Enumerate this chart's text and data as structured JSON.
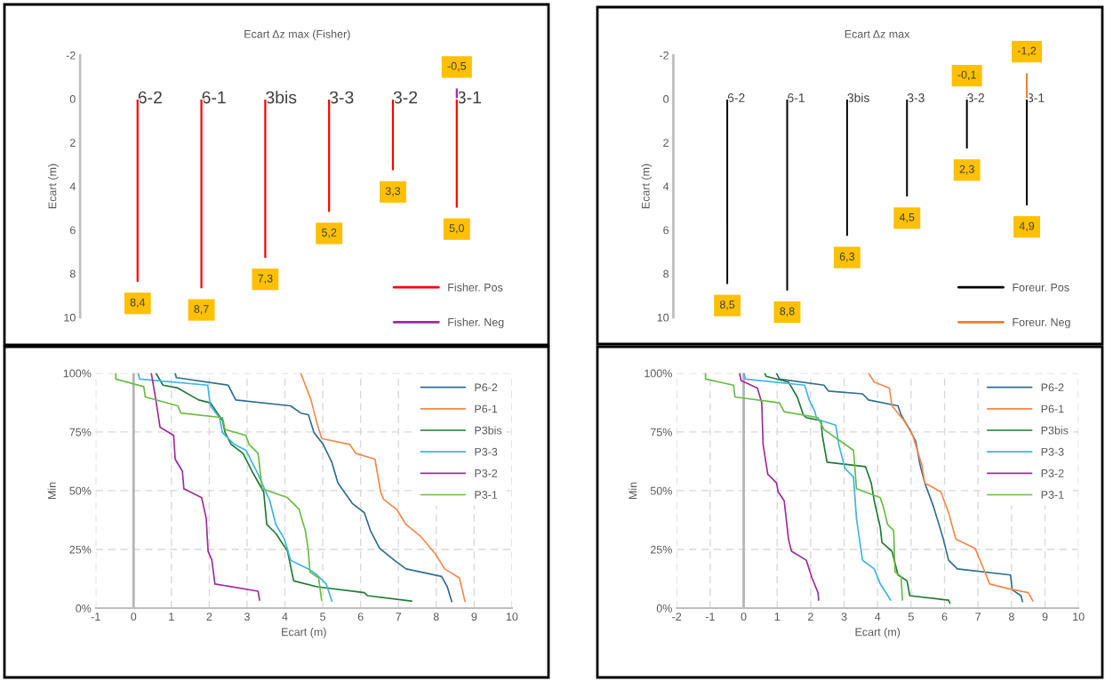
{
  "chart_data": [
    {
      "type": "bar",
      "title": "Ecart Δz max (Fisher)",
      "ylabel": "Ecart (m)",
      "categories": [
        "6-2",
        "6-1",
        "3bis",
        "3-3",
        "3-2",
        "3-1"
      ],
      "series": [
        {
          "name": "Fisher. Pos",
          "color": "#ff0000",
          "values": [
            8.4,
            8.7,
            7.3,
            5.2,
            3.3,
            5.0
          ],
          "value_labels": [
            "8,4",
            "8,7",
            "7,3",
            "5,2",
            "3,3",
            "5,0"
          ]
        },
        {
          "name": "Fisher. Neg",
          "color": "#9e2a9e",
          "values": [
            null,
            null,
            null,
            null,
            null,
            -0.5
          ],
          "value_labels": [
            null,
            null,
            null,
            null,
            null,
            "-0,5"
          ]
        }
      ],
      "ylim": [
        10,
        -2
      ],
      "yticks": [
        -2,
        0,
        2,
        4,
        6,
        8,
        10
      ],
      "grid": false,
      "legend": "bottom right"
    },
    {
      "type": "bar",
      "title": "Ecart Δz max",
      "ylabel": "Ecart (m)",
      "categories": [
        "6-2",
        "6-1",
        "3bis",
        "3-3",
        "3-2",
        "3-1"
      ],
      "series": [
        {
          "name": "Foreur. Pos",
          "color": "#000000",
          "values": [
            8.5,
            8.8,
            6.3,
            4.5,
            2.3,
            4.9
          ],
          "value_labels": [
            "8,5",
            "8,8",
            "6,3",
            "4,5",
            "2,3",
            "4,9"
          ]
        },
        {
          "name": "Foreur. Neg",
          "color": "#ed7d31",
          "values": [
            null,
            null,
            null,
            null,
            -0.1,
            -1.2
          ],
          "value_labels": [
            null,
            null,
            null,
            null,
            "-0,1",
            "-1,2"
          ]
        }
      ],
      "ylim": [
        10,
        -2
      ],
      "yticks": [
        -2,
        0,
        2,
        4,
        6,
        8,
        10
      ],
      "grid": false,
      "legend": "bottom right"
    },
    {
      "type": "line",
      "xlabel": "Ecart (m)",
      "ylabel": "Min",
      "line_style": "solid",
      "grid": true,
      "legend": "top right",
      "xlim": [
        -1,
        10
      ],
      "xticks": [
        -1,
        0,
        1,
        2,
        3,
        4,
        5,
        6,
        7,
        8,
        9,
        10
      ],
      "ylim": [
        0,
        100
      ],
      "yticks": [
        {
          "value": 0,
          "label": "0%"
        },
        {
          "value": 25,
          "label": "25%"
        },
        {
          "value": 50,
          "label": "50%"
        },
        {
          "value": 75,
          "label": "75%"
        },
        {
          "value": 100,
          "label": "100%"
        }
      ],
      "ref_lines": [
        {
          "axis": "x",
          "value": 0,
          "color": "#b4b4b4"
        }
      ],
      "series": [
        {
          "name": "P6-2",
          "color": "#2e6e92",
          "x": [
            1.1,
            1.13,
            2.5,
            2.7,
            4.15,
            4.42,
            4.62,
            4.77,
            5.01,
            5.24,
            5.4,
            5.79,
            6.1,
            6.26,
            6.5,
            6.89,
            7.2,
            8.14,
            8.29,
            8.41
          ],
          "values": [
            100,
            98.1,
            94.9,
            88.6,
            86.1,
            83.0,
            82.3,
            74.7,
            69.7,
            62.1,
            53.3,
            44.4,
            40.6,
            33.0,
            25.5,
            20.4,
            16.7,
            13.5,
            9.1,
            2.8
          ]
        },
        {
          "name": "P6-1",
          "color": "#f4894a",
          "x": [
            4.42,
            4.69,
            4.85,
            4.97,
            5.71,
            5.87,
            6.38,
            6.53,
            6.61,
            6.96,
            7.2,
            7.59,
            7.98,
            8.22,
            8.61,
            8.76
          ],
          "values": [
            100,
            88.6,
            78.5,
            72.2,
            69.7,
            65.9,
            63.4,
            49.4,
            46.3,
            41.9,
            35.6,
            30.5,
            23.0,
            16.7,
            12.9,
            2.8
          ]
        },
        {
          "name": "P3bis",
          "color": "#1e7b32",
          "x": [
            0.59,
            0.78,
            1.17,
            1.72,
            2.03,
            2.35,
            2.42,
            2.58,
            2.89,
            3.13,
            3.44,
            3.52,
            3.76,
            4.07,
            4.23,
            4.85,
            6.1,
            6.18,
            7.35
          ],
          "values": [
            100,
            94.9,
            93.7,
            88.6,
            87.4,
            79.8,
            74.7,
            69.7,
            65.9,
            58.3,
            49.4,
            35.6,
            31.8,
            24.2,
            11.6,
            9.1,
            6.6,
            5.3,
            3.0
          ]
        },
        {
          "name": "P3-3",
          "color": "#3db4e6",
          "x": [
            0.12,
            0.16,
            1.96,
            2.03,
            2.27,
            2.35,
            2.66,
            2.97,
            3.29,
            3.6,
            3.76,
            3.99,
            4.15,
            4.46,
            4.62,
            4.85,
            5.09,
            5.24
          ],
          "values": [
            100,
            97.5,
            94.9,
            86.1,
            81.1,
            74.7,
            69.7,
            67.2,
            57.0,
            45.7,
            35.6,
            29.3,
            20.4,
            17.9,
            16.7,
            14.1,
            10.3,
            3.0
          ]
        },
        {
          "name": "P3-2",
          "color": "#9e2a9e",
          "x": [
            0.47,
            0.59,
            0.7,
            1.06,
            1.1,
            1.29,
            1.33,
            1.8,
            1.92,
            1.97,
            2.07,
            2.15,
            3.29,
            3.33
          ],
          "values": [
            100,
            88.6,
            77.0,
            73.5,
            63.4,
            58.3,
            50.8,
            47.0,
            38.2,
            24.2,
            20.4,
            10.3,
            7.2,
            3.4
          ]
        },
        {
          "name": "P3-1",
          "color": "#6abb44",
          "x": [
            -0.47,
            -0.47,
            0.27,
            0.31,
            1.17,
            1.25,
            2.35,
            2.42,
            2.97,
            3.05,
            3.29,
            3.4,
            4.07,
            4.38,
            4.42,
            4.54,
            4.62,
            4.66,
            4.89,
            4.97
          ],
          "values": [
            100,
            97.5,
            94.3,
            89.9,
            86.1,
            83.0,
            81.1,
            76.0,
            73.5,
            69.7,
            65.9,
            50.8,
            47.0,
            42.0,
            39.4,
            33.0,
            24.2,
            15.4,
            12.9,
            3.4
          ]
        }
      ]
    },
    {
      "type": "line",
      "xlabel": "Ecart (m)",
      "ylabel": "Min",
      "line_style": "solid",
      "grid": true,
      "legend": "top right",
      "xlim": [
        -2,
        10
      ],
      "xticks": [
        -2,
        -1,
        0,
        1,
        2,
        3,
        4,
        5,
        6,
        7,
        8,
        9,
        10
      ],
      "ylim": [
        0,
        100
      ],
      "yticks": [
        {
          "value": 0,
          "label": "0%"
        },
        {
          "value": 25,
          "label": "25%"
        },
        {
          "value": 50,
          "label": "50%"
        },
        {
          "value": 75,
          "label": "75%"
        },
        {
          "value": 100,
          "label": "100%"
        }
      ],
      "ref_lines": [
        {
          "axis": "x",
          "value": 0,
          "color": "#b4b4b4"
        }
      ],
      "series": [
        {
          "name": "P6-2",
          "color": "#2e6e92",
          "x": [
            0.98,
            1.07,
            2.4,
            2.53,
            3.55,
            3.73,
            4.61,
            4.7,
            4.96,
            5.14,
            5.27,
            5.41,
            5.67,
            5.94,
            6.12,
            6.38,
            7.97,
            8.02,
            8.28,
            8.33
          ],
          "values": [
            100,
            97.5,
            94.9,
            92.4,
            91.2,
            88.6,
            86.1,
            82.3,
            76.0,
            70.9,
            60.9,
            53.3,
            43.2,
            30.6,
            20.4,
            16.7,
            14.1,
            7.8,
            5.3,
            2.8
          ]
        },
        {
          "name": "P6-1",
          "color": "#f4894a",
          "x": [
            3.73,
            3.9,
            4.35,
            4.43,
            4.79,
            5.05,
            5.32,
            5.41,
            5.89,
            6.12,
            6.34,
            6.91,
            7.13,
            7.35,
            7.88,
            8.5,
            8.64
          ],
          "values": [
            100,
            96.2,
            93.7,
            86.1,
            79.8,
            73.5,
            60.9,
            53.3,
            49.5,
            40.6,
            29.3,
            25.5,
            18.0,
            10.3,
            8.4,
            6.6,
            3.0
          ]
        },
        {
          "name": "P3bis",
          "color": "#1e7b32",
          "x": [
            0.63,
            0.67,
            1.34,
            1.6,
            1.78,
            1.87,
            2.31,
            2.35,
            2.49,
            3.64,
            3.81,
            3.9,
            4.08,
            4.13,
            4.43,
            4.61,
            4.88,
            4.96,
            6.12,
            6.16
          ],
          "values": [
            100,
            98.7,
            96.2,
            89.9,
            82.3,
            81.1,
            79.8,
            73.5,
            62.1,
            60.2,
            53.3,
            45.7,
            34.3,
            28.0,
            24.2,
            14.1,
            11.6,
            5.3,
            3.4,
            2.1
          ]
        },
        {
          "name": "P3-3",
          "color": "#3db4e6",
          "x": [
            0.01,
            0.05,
            1.82,
            1.96,
            2.13,
            2.18,
            2.75,
            2.84,
            3.02,
            3.28,
            3.37,
            3.55,
            3.9,
            4.08,
            4.39
          ],
          "values": [
            100,
            97.5,
            94.9,
            88.6,
            83.6,
            80.4,
            77.9,
            69.7,
            59.6,
            55.8,
            38.1,
            20.4,
            16.7,
            10.3,
            3.4
          ]
        },
        {
          "name": "P3-2",
          "color": "#9e2a9e",
          "x": [
            -0.12,
            -0.08,
            0.41,
            0.54,
            0.58,
            0.72,
            0.98,
            1.03,
            1.21,
            1.34,
            1.43,
            1.87,
            2.04,
            2.22,
            2.24
          ],
          "values": [
            100,
            96.9,
            93.7,
            87.4,
            69.7,
            57.0,
            53.3,
            49.5,
            45.7,
            29.3,
            24.2,
            20.4,
            12.9,
            6.6,
            3.4
          ]
        },
        {
          "name": "P3-1",
          "color": "#6abb44",
          "x": [
            -1.14,
            -1.14,
            -0.3,
            -0.26,
            1.07,
            1.21,
            2.22,
            2.4,
            3.28,
            3.37,
            4.08,
            4.17,
            4.3,
            4.48,
            4.52,
            4.7,
            4.74
          ],
          "values": [
            100,
            97.5,
            94.9,
            89.9,
            87.4,
            83.6,
            81.1,
            76.0,
            67.2,
            50.8,
            47.0,
            43.2,
            35.6,
            33.0,
            15.4,
            13.5,
            3.4
          ]
        }
      ]
    }
  ]
}
